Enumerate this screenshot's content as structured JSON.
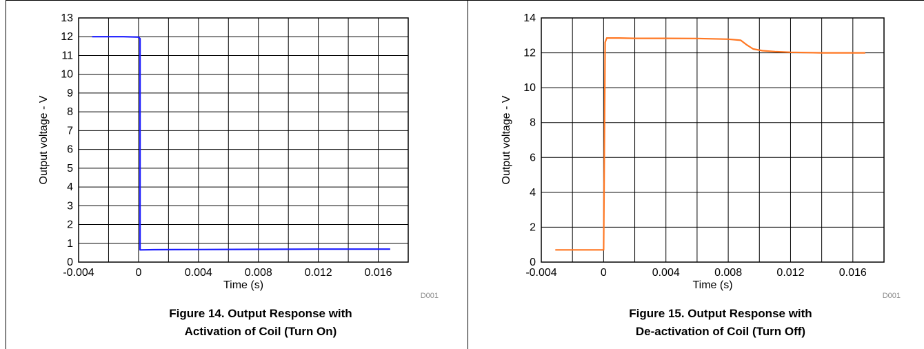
{
  "figure_captions": [
    {
      "line1": "Figure 14. Output Response with",
      "line2": "Activation of Coil (Turn On)"
    },
    {
      "line1": "Figure 15. Output Response with",
      "line2": "De-activation of Coil (Turn Off)"
    }
  ],
  "chart_data": [
    {
      "type": "line",
      "title": "",
      "xlabel": "Time (s)",
      "ylabel": "Output voltage - V",
      "code": "D001",
      "xlim": [
        -0.004,
        0.018
      ],
      "ylim": [
        0,
        13
      ],
      "grid": true,
      "x_ticks": [
        -0.004,
        0,
        0.004,
        0.008,
        0.012,
        0.016
      ],
      "x_tick_labels": [
        "-0.004",
        "0",
        "0.004",
        "0.008",
        "0.012",
        "0.016"
      ],
      "y_ticks": [
        0,
        1,
        2,
        3,
        4,
        5,
        6,
        7,
        8,
        9,
        10,
        11,
        12,
        13
      ],
      "y_tick_labels": [
        "0",
        "1",
        "2",
        "3",
        "4",
        "5",
        "6",
        "7",
        "8",
        "9",
        "10",
        "11",
        "12",
        "13"
      ],
      "series": [
        {
          "color": "#1a1aff",
          "x": [
            -0.0031,
            -0.002,
            -0.001,
            0.0,
            0.0001,
            0.0001,
            0.001,
            0.004,
            0.008,
            0.012,
            0.016,
            0.0168
          ],
          "y": [
            12.0,
            12.0,
            12.0,
            11.98,
            11.9,
            0.65,
            0.66,
            0.67,
            0.68,
            0.69,
            0.69,
            0.69
          ]
        }
      ]
    },
    {
      "type": "line",
      "title": "",
      "xlabel": "Time (s)",
      "ylabel": "Output voltage - V",
      "code": "D001",
      "xlim": [
        -0.004,
        0.018
      ],
      "ylim": [
        0,
        14
      ],
      "grid": true,
      "x_ticks": [
        -0.004,
        0,
        0.004,
        0.008,
        0.012,
        0.016
      ],
      "x_tick_labels": [
        "-0.004",
        "0",
        "0.004",
        "0.008",
        "0.012",
        "0.016"
      ],
      "y_ticks": [
        0,
        2,
        4,
        6,
        8,
        10,
        12,
        14
      ],
      "y_tick_labels": [
        "0",
        "2",
        "4",
        "6",
        "8",
        "10",
        "12",
        "14"
      ],
      "series": [
        {
          "color": "#ff7722",
          "x": [
            -0.0031,
            -0.002,
            -0.001,
            0.0,
            0.0001,
            0.0002,
            0.001,
            0.002,
            0.004,
            0.006,
            0.008,
            0.0088,
            0.0092,
            0.0096,
            0.0102,
            0.011,
            0.012,
            0.014,
            0.0168
          ],
          "y": [
            0.7,
            0.7,
            0.7,
            0.7,
            12.6,
            12.85,
            12.85,
            12.83,
            12.83,
            12.82,
            12.78,
            12.72,
            12.45,
            12.22,
            12.12,
            12.07,
            12.03,
            12.0,
            12.0
          ]
        }
      ]
    }
  ]
}
